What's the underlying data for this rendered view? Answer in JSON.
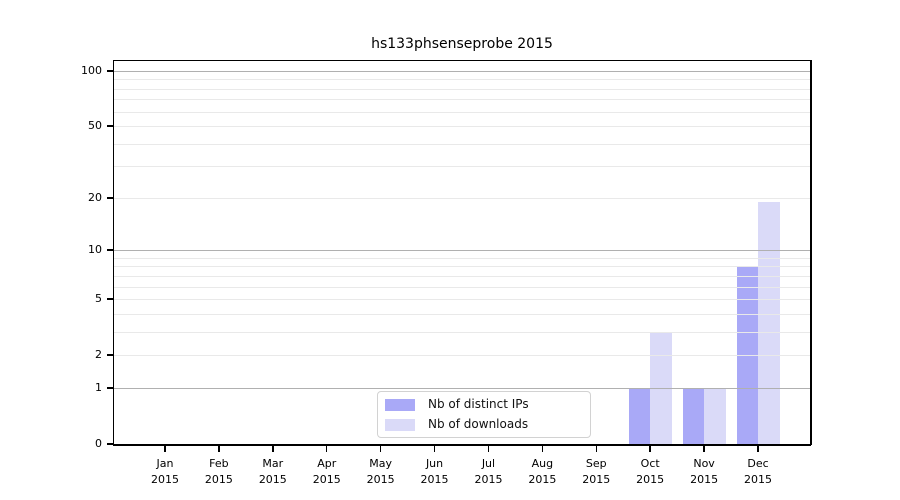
{
  "chart_data": {
    "type": "bar",
    "title": "hs133phsenseprobe 2015",
    "categories": [
      {
        "month": "Jan",
        "year": "2015"
      },
      {
        "month": "Feb",
        "year": "2015"
      },
      {
        "month": "Mar",
        "year": "2015"
      },
      {
        "month": "Apr",
        "year": "2015"
      },
      {
        "month": "May",
        "year": "2015"
      },
      {
        "month": "Jun",
        "year": "2015"
      },
      {
        "month": "Jul",
        "year": "2015"
      },
      {
        "month": "Aug",
        "year": "2015"
      },
      {
        "month": "Sep",
        "year": "2015"
      },
      {
        "month": "Oct",
        "year": "2015"
      },
      {
        "month": "Nov",
        "year": "2015"
      },
      {
        "month": "Dec",
        "year": "2015"
      }
    ],
    "series": [
      {
        "name": "Nb of distinct IPs",
        "color": "#a9a9f7",
        "values": [
          0,
          0,
          0,
          0,
          0,
          0,
          0,
          0,
          0,
          1,
          1,
          8
        ]
      },
      {
        "name": "Nb of downloads",
        "color": "#dadaf8",
        "values": [
          0,
          0,
          0,
          0,
          0,
          0,
          0,
          0,
          0,
          3,
          1,
          19
        ]
      }
    ],
    "xlabel": "",
    "ylabel": "",
    "y_scale": "log1p",
    "y_ticks": [
      0,
      1,
      2,
      5,
      10,
      20,
      50,
      100
    ],
    "y_major_gridlines": [
      1,
      10,
      100
    ],
    "y_minor_gridlines": [
      2,
      3,
      4,
      5,
      6,
      7,
      8,
      9,
      20,
      30,
      40,
      50,
      60,
      70,
      80,
      90
    ],
    "ylim": [
      0,
      112
    ],
    "grid": "horizontal",
    "legend_position": "inside lower-center",
    "colors": {
      "major_grid": "#b0b0b0",
      "minor_grid": "#e9e9e9",
      "axis": "#000000",
      "background": "#ffffff"
    }
  }
}
